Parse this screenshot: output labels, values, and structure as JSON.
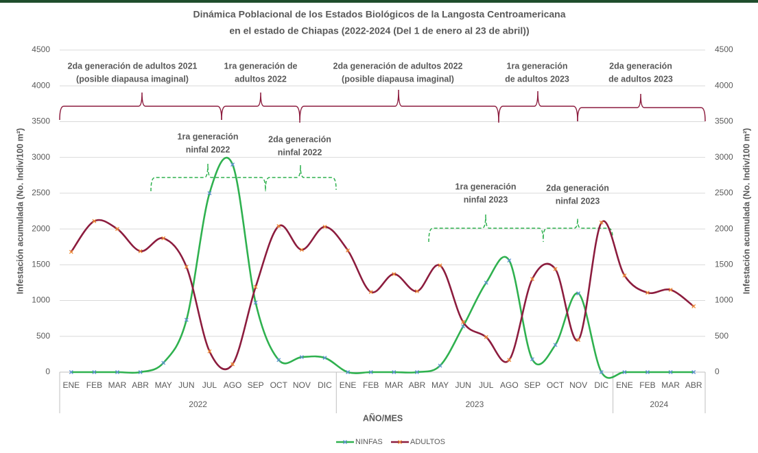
{
  "chart_data": {
    "type": "line",
    "title": [
      "Dinámica Poblacional de los Estados Biológicos de la Langosta Centroamericana",
      "en el estado de Chiapas (2022-2024 (Del 1 de enero al 23 de abril))"
    ],
    "y_label": "Infestación acumulada (No. Indiv/100 m²)",
    "y2_label": "Infestación acumulada (No. Indiv/100 m²)",
    "x_label": "AÑO/MES",
    "categories": [
      "ENE",
      "FEB",
      "MAR",
      "ABR",
      "MAY",
      "JUN",
      "JUL",
      "AGO",
      "SEP",
      "OCT",
      "NOV",
      "DIC",
      "ENE",
      "FEB",
      "MAR",
      "ABR",
      "MAY",
      "JUN",
      "JUL",
      "AGO",
      "SEP",
      "OCT",
      "NOV",
      "DIC",
      "ENE",
      "FEB",
      "MAR",
      "ABR"
    ],
    "x_groups": [
      {
        "label": "2022",
        "span": 12
      },
      {
        "label": "2023",
        "span": 12
      },
      {
        "label": "2024",
        "span": 4
      }
    ],
    "ylim": [
      0,
      4500
    ],
    "yticks": [
      0,
      500,
      1000,
      1500,
      2000,
      2500,
      3000,
      3500,
      4000,
      4500
    ],
    "y2lim": [
      0,
      4500
    ],
    "y2ticks": [
      0,
      500,
      1000,
      1500,
      2000,
      2500,
      3000,
      3500,
      4000,
      4500
    ],
    "grid": true,
    "legend": "bottom",
    "series": [
      {
        "name": "NINFAS",
        "color": "#2fb14f",
        "marker_color": "#5b8fd0",
        "values": [
          0,
          0,
          0,
          0,
          130,
          730,
          2500,
          2900,
          970,
          170,
          210,
          200,
          0,
          0,
          0,
          0,
          90,
          640,
          1250,
          1560,
          180,
          380,
          1100,
          0,
          0,
          0,
          0,
          0
        ]
      },
      {
        "name": "ADULTOS",
        "color": "#8c1c3e",
        "marker_color": "#f08a30",
        "values": [
          1680,
          2110,
          2000,
          1690,
          1870,
          1470,
          290,
          110,
          1190,
          2040,
          1710,
          2030,
          1700,
          1120,
          1370,
          1130,
          1490,
          700,
          490,
          170,
          1300,
          1440,
          450,
          2090,
          1350,
          1110,
          1150,
          920
        ]
      }
    ],
    "annotations": [
      {
        "lines": [
          "2da generación de adultos 2021",
          "(posible diapausa imaginal)"
        ]
      },
      {
        "lines": [
          "1ra generación de",
          "adultos 2022"
        ]
      },
      {
        "lines": [
          "2da generación de adultos 2022",
          "(posible diapausa imaginal)"
        ]
      },
      {
        "lines": [
          "1ra generación",
          "de adultos 2023"
        ]
      },
      {
        "lines": [
          "2da generación",
          "de adultos 2023"
        ]
      },
      {
        "lines": [
          "1ra generación",
          "ninfal 2022"
        ]
      },
      {
        "lines": [
          "2da generación",
          "ninfal 2022"
        ]
      },
      {
        "lines": [
          "1ra generación",
          "ninfal 2023"
        ]
      },
      {
        "lines": [
          "2da generación",
          "ninfal 2023"
        ]
      }
    ]
  }
}
